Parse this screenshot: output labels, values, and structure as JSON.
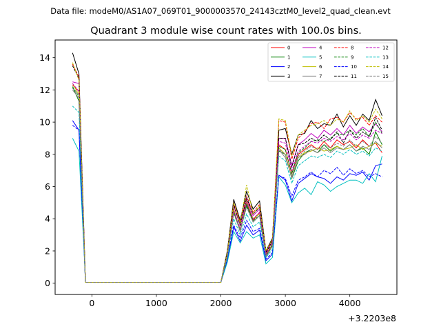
{
  "header": {
    "suptitle": "Data file: modeM0/AS1A07_069T01_9000003570_24143cztM0_level2_quad_clean.evt"
  },
  "chart_data": {
    "type": "line",
    "title": "Quadrant 3 module wise count rates with 100.0s bins.",
    "xlabel": "",
    "ylabel": "",
    "x_offset_label": "+3.2203e8",
    "xlim": [
      -570,
      4730
    ],
    "ylim": [
      -0.7,
      15.1
    ],
    "xticks": [
      0,
      1000,
      2000,
      3000,
      4000
    ],
    "yticks": [
      0,
      2,
      4,
      6,
      8,
      10,
      12,
      14
    ],
    "grid": false,
    "legend": {
      "placement": "top-right",
      "columns": 4
    },
    "x": [
      -300,
      -200,
      -120,
      -100,
      0,
      100,
      200,
      300,
      400,
      500,
      600,
      700,
      800,
      900,
      1000,
      1100,
      1200,
      1300,
      1400,
      1500,
      1600,
      1700,
      1800,
      1900,
      2000,
      2100,
      2200,
      2300,
      2400,
      2500,
      2600,
      2700,
      2800,
      2900,
      3000,
      3100,
      3200,
      3300,
      3400,
      3500,
      3600,
      3700,
      3800,
      3900,
      4000,
      4100,
      4200,
      4300,
      4400,
      4500
    ],
    "series": [
      {
        "name": "0",
        "color": "#ff0000",
        "dash": "solid",
        "values": [
          12.3,
          11.9,
          2.5,
          0.05,
          0.05,
          0.05,
          0.05,
          0.05,
          0.05,
          0.05,
          0.05,
          0.05,
          0.05,
          0.05,
          0.05,
          0.05,
          0.05,
          0.05,
          0.05,
          0.05,
          0.05,
          0.05,
          0.05,
          0.05,
          0.05,
          1.8,
          4.6,
          3.2,
          5.0,
          3.9,
          4.4,
          1.8,
          2.4,
          8.6,
          8.3,
          6.8,
          8.0,
          8.3,
          8.6,
          8.3,
          8.8,
          8.4,
          8.9,
          8.6,
          8.8,
          8.4,
          8.9,
          8.5,
          8.7,
          8.1
        ]
      },
      {
        "name": "1",
        "color": "#008000",
        "dash": "solid",
        "values": [
          12.2,
          11.3,
          2.3,
          0.05,
          0.05,
          0.05,
          0.05,
          0.05,
          0.05,
          0.05,
          0.05,
          0.05,
          0.05,
          0.05,
          0.05,
          0.05,
          0.05,
          0.05,
          0.05,
          0.05,
          0.05,
          0.05,
          0.05,
          0.05,
          0.05,
          1.7,
          4.5,
          3.3,
          4.9,
          3.8,
          4.2,
          1.7,
          2.3,
          8.2,
          8.0,
          6.5,
          7.6,
          8.1,
          8.3,
          8.1,
          8.6,
          8.2,
          8.5,
          8.3,
          8.6,
          8.2,
          8.4,
          8.0,
          9.4,
          8.6
        ]
      },
      {
        "name": "2",
        "color": "#0000ff",
        "dash": "solid",
        "values": [
          10.1,
          9.5,
          2.0,
          0.05,
          0.05,
          0.05,
          0.05,
          0.05,
          0.05,
          0.05,
          0.05,
          0.05,
          0.05,
          0.05,
          0.05,
          0.05,
          0.05,
          0.05,
          0.05,
          0.05,
          0.05,
          0.05,
          0.05,
          0.05,
          0.05,
          1.4,
          3.5,
          2.6,
          3.6,
          3.0,
          3.3,
          1.4,
          1.8,
          6.7,
          6.4,
          5.1,
          6.2,
          6.5,
          6.8,
          6.6,
          6.5,
          6.2,
          6.6,
          6.4,
          6.8,
          6.7,
          6.9,
          6.4,
          7.3,
          7.4
        ]
      },
      {
        "name": "3",
        "color": "#000000",
        "dash": "solid",
        "values": [
          14.3,
          13.0,
          2.8,
          0.05,
          0.05,
          0.05,
          0.05,
          0.05,
          0.05,
          0.05,
          0.05,
          0.05,
          0.05,
          0.05,
          0.05,
          0.05,
          0.05,
          0.05,
          0.05,
          0.05,
          0.05,
          0.05,
          0.05,
          0.05,
          0.05,
          2.0,
          5.2,
          3.9,
          5.7,
          4.6,
          5.1,
          2.0,
          2.8,
          9.5,
          9.6,
          8.0,
          9.2,
          9.3,
          10.1,
          9.6,
          9.9,
          9.8,
          10.5,
          9.7,
          10.4,
          9.8,
          10.5,
          10.1,
          11.4,
          10.4
        ]
      },
      {
        "name": "4",
        "color": "#bf00bf",
        "dash": "solid",
        "values": [
          12.5,
          12.4,
          2.6,
          0.05,
          0.05,
          0.05,
          0.05,
          0.05,
          0.05,
          0.05,
          0.05,
          0.05,
          0.05,
          0.05,
          0.05,
          0.05,
          0.05,
          0.05,
          0.05,
          0.05,
          0.05,
          0.05,
          0.05,
          0.05,
          0.05,
          1.8,
          4.8,
          3.6,
          5.2,
          4.2,
          4.6,
          1.9,
          2.6,
          9.0,
          9.0,
          7.3,
          8.6,
          8.9,
          9.3,
          9.0,
          9.5,
          9.2,
          9.6,
          9.2,
          9.8,
          9.3,
          9.7,
          9.4,
          9.9,
          9.4
        ]
      },
      {
        "name": "5",
        "color": "#00bfbf",
        "dash": "solid",
        "values": [
          9.0,
          8.2,
          1.9,
          0.05,
          0.05,
          0.05,
          0.05,
          0.05,
          0.05,
          0.05,
          0.05,
          0.05,
          0.05,
          0.05,
          0.05,
          0.05,
          0.05,
          0.05,
          0.05,
          0.05,
          0.05,
          0.05,
          0.05,
          0.05,
          0.05,
          1.3,
          3.2,
          2.5,
          3.2,
          2.8,
          3.0,
          1.2,
          1.6,
          6.6,
          6.1,
          5.0,
          5.6,
          5.9,
          5.5,
          6.3,
          6.1,
          5.7,
          6.0,
          6.2,
          6.4,
          6.4,
          6.2,
          6.8,
          6.3,
          7.9
        ]
      },
      {
        "name": "6",
        "color": "#bfbf00",
        "dash": "solid",
        "values": [
          12.4,
          11.7,
          2.4,
          0.05,
          0.05,
          0.05,
          0.05,
          0.05,
          0.05,
          0.05,
          0.05,
          0.05,
          0.05,
          0.05,
          0.05,
          0.05,
          0.05,
          0.05,
          0.05,
          0.05,
          0.05,
          0.05,
          0.05,
          0.05,
          0.05,
          1.7,
          4.6,
          3.3,
          5.1,
          4.0,
          4.3,
          1.7,
          2.4,
          8.4,
          8.0,
          6.6,
          7.8,
          8.1,
          8.2,
          8.4,
          8.2,
          8.3,
          8.5,
          8.3,
          8.4,
          8.6,
          8.3,
          8.5,
          8.7,
          8.5
        ]
      },
      {
        "name": "7",
        "color": "#808080",
        "dash": "solid",
        "values": [
          12.0,
          11.5,
          2.4,
          0.05,
          0.05,
          0.05,
          0.05,
          0.05,
          0.05,
          0.05,
          0.05,
          0.05,
          0.05,
          0.05,
          0.05,
          0.05,
          0.05,
          0.05,
          0.05,
          0.05,
          0.05,
          0.05,
          0.05,
          0.05,
          0.05,
          1.6,
          4.4,
          3.2,
          4.8,
          3.8,
          4.2,
          1.6,
          2.3,
          8.3,
          7.8,
          6.6,
          7.8,
          8.0,
          8.3,
          8.1,
          8.4,
          8.1,
          8.4,
          8.3,
          8.6,
          8.2,
          8.5,
          8.3,
          8.8,
          8.4
        ]
      },
      {
        "name": "8",
        "color": "#ff0000",
        "dash": "dashed",
        "values": [
          13.6,
          12.8,
          2.7,
          0.05,
          0.05,
          0.05,
          0.05,
          0.05,
          0.05,
          0.05,
          0.05,
          0.05,
          0.05,
          0.05,
          0.05,
          0.05,
          0.05,
          0.05,
          0.05,
          0.05,
          0.05,
          0.05,
          0.05,
          0.05,
          0.05,
          1.9,
          5.0,
          3.8,
          5.4,
          4.4,
          4.9,
          1.9,
          2.7,
          10.1,
          10.0,
          7.7,
          9.0,
          9.4,
          9.9,
          10.0,
          9.6,
          10.2,
          10.3,
          10.0,
          10.6,
          10.2,
          10.3,
          9.8,
          10.4,
          10.0
        ]
      },
      {
        "name": "9",
        "color": "#008000",
        "dash": "dashed",
        "values": [
          12.2,
          11.6,
          2.4,
          0.05,
          0.05,
          0.05,
          0.05,
          0.05,
          0.05,
          0.05,
          0.05,
          0.05,
          0.05,
          0.05,
          0.05,
          0.05,
          0.05,
          0.05,
          0.05,
          0.05,
          0.05,
          0.05,
          0.05,
          0.05,
          0.05,
          1.7,
          4.4,
          3.3,
          4.8,
          3.9,
          4.2,
          1.7,
          2.4,
          8.5,
          8.3,
          6.8,
          8.1,
          8.4,
          8.8,
          8.9,
          8.8,
          9.0,
          9.3,
          9.2,
          9.5,
          9.2,
          9.6,
          9.1,
          10.0,
          9.3
        ]
      },
      {
        "name": "10",
        "color": "#0000ff",
        "dash": "dashed",
        "values": [
          9.8,
          9.5,
          2.1,
          0.05,
          0.05,
          0.05,
          0.05,
          0.05,
          0.05,
          0.05,
          0.05,
          0.05,
          0.05,
          0.05,
          0.05,
          0.05,
          0.05,
          0.05,
          0.05,
          0.05,
          0.05,
          0.05,
          0.05,
          0.05,
          0.05,
          1.5,
          3.6,
          2.8,
          3.9,
          3.2,
          3.4,
          1.5,
          1.9,
          6.7,
          6.5,
          5.4,
          6.4,
          6.6,
          6.9,
          6.6,
          7.0,
          6.8,
          7.2,
          6.7,
          7.1,
          6.8,
          7.0,
          6.6,
          6.8,
          6.6
        ]
      },
      {
        "name": "11",
        "color": "#000000",
        "dash": "dashed",
        "values": [
          13.5,
          12.7,
          2.6,
          0.05,
          0.05,
          0.05,
          0.05,
          0.05,
          0.05,
          0.05,
          0.05,
          0.05,
          0.05,
          0.05,
          0.05,
          0.05,
          0.05,
          0.05,
          0.05,
          0.05,
          0.05,
          0.05,
          0.05,
          0.05,
          0.05,
          1.9,
          4.9,
          3.6,
          5.3,
          4.3,
          4.7,
          1.9,
          2.6,
          9.0,
          9.0,
          7.2,
          8.6,
          8.7,
          9.0,
          8.8,
          9.2,
          8.9,
          9.4,
          8.7,
          9.5,
          9.0,
          9.4,
          9.1,
          10.3,
          9.5
        ]
      },
      {
        "name": "12",
        "color": "#bf00bf",
        "dash": "dashed",
        "values": [
          12.4,
          11.9,
          2.4,
          0.05,
          0.05,
          0.05,
          0.05,
          0.05,
          0.05,
          0.05,
          0.05,
          0.05,
          0.05,
          0.05,
          0.05,
          0.05,
          0.05,
          0.05,
          0.05,
          0.05,
          0.05,
          0.05,
          0.05,
          0.05,
          0.05,
          1.7,
          4.5,
          3.4,
          5.0,
          4.0,
          4.4,
          1.8,
          2.5,
          8.8,
          8.7,
          7.0,
          8.2,
          8.5,
          8.8,
          8.7,
          9.0,
          8.8,
          9.1,
          8.9,
          9.3,
          8.9,
          9.2,
          9.0,
          9.5,
          9.3
        ]
      },
      {
        "name": "13",
        "color": "#00bfbf",
        "dash": "dashed",
        "values": [
          11.0,
          10.6,
          2.3,
          0.05,
          0.05,
          0.05,
          0.05,
          0.05,
          0.05,
          0.05,
          0.05,
          0.05,
          0.05,
          0.05,
          0.05,
          0.05,
          0.05,
          0.05,
          0.05,
          0.05,
          0.05,
          0.05,
          0.05,
          0.05,
          0.05,
          1.6,
          4.0,
          3.0,
          4.3,
          3.5,
          3.8,
          1.6,
          2.1,
          7.9,
          7.6,
          6.2,
          7.3,
          7.6,
          7.9,
          7.8,
          8.0,
          7.8,
          8.2,
          8.0,
          8.3,
          8.0,
          8.2,
          7.9,
          8.4,
          8.2
        ]
      },
      {
        "name": "14",
        "color": "#bfbf00",
        "dash": "dashed",
        "values": [
          13.7,
          12.6,
          2.6,
          0.05,
          0.05,
          0.05,
          0.05,
          0.05,
          0.05,
          0.05,
          0.05,
          0.05,
          0.05,
          0.05,
          0.05,
          0.05,
          0.05,
          0.05,
          0.05,
          0.05,
          0.05,
          0.05,
          0.05,
          0.05,
          0.05,
          1.9,
          5.0,
          3.7,
          6.1,
          4.3,
          4.8,
          2.0,
          2.7,
          10.2,
          10.1,
          7.9,
          9.2,
          9.5,
          9.8,
          9.9,
          10.1,
          9.8,
          10.2,
          10.0,
          10.7,
          10.1,
          10.4,
          10.0,
          10.8,
          10.2
        ]
      },
      {
        "name": "15",
        "color": "#808080",
        "dash": "dashed",
        "values": [
          12.1,
          11.7,
          2.4,
          0.05,
          0.05,
          0.05,
          0.05,
          0.05,
          0.05,
          0.05,
          0.05,
          0.05,
          0.05,
          0.05,
          0.05,
          0.05,
          0.05,
          0.05,
          0.05,
          0.05,
          0.05,
          0.05,
          0.05,
          0.05,
          0.05,
          1.7,
          4.3,
          3.3,
          4.7,
          3.8,
          4.2,
          1.7,
          2.3,
          8.3,
          8.0,
          6.5,
          7.9,
          8.2,
          8.5,
          8.3,
          8.6,
          8.4,
          8.7,
          8.5,
          8.9,
          8.5,
          8.8,
          8.5,
          9.1,
          8.7
        ]
      }
    ]
  }
}
